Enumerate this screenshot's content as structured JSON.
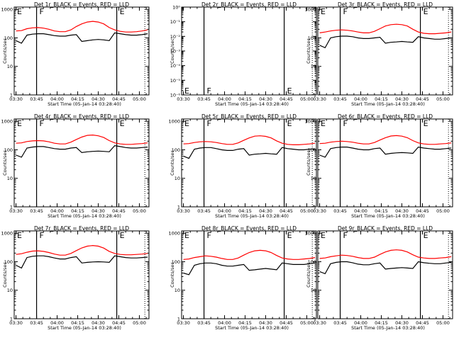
{
  "colors": {
    "events": "#000000",
    "lld": "#ff0000",
    "background": "#ffffff"
  },
  "shared": {
    "xlabel": "Start Time (05-Jan-14 03:28:40)",
    "ylabel": "Counts/sec",
    "x_ticks": [
      "03:30",
      "03:45",
      "04:00",
      "04:15",
      "04:30",
      "04:45",
      "05:00"
    ],
    "y_ticks": [
      "1",
      "10",
      "100",
      "1000"
    ],
    "markers": [
      "E",
      "F",
      "E"
    ]
  },
  "chart_data": [
    {
      "type": "line",
      "title": "Det 1r_BLACK = Events, RED = LLD",
      "xlabel": "Start Time (05-Jan-14 03:28:40)",
      "ylabel": "Counts/sec",
      "y_scale": "log",
      "ylim": [
        1,
        1200
      ],
      "xlim": [
        "03:28:40",
        "05:07:00"
      ],
      "x": [
        "03:30",
        "03:34",
        "03:38",
        "03:42",
        "03:46",
        "03:50",
        "03:54",
        "03:58",
        "04:02",
        "04:06",
        "04:10",
        "04:14",
        "04:18",
        "04:22",
        "04:26",
        "04:30",
        "04:34",
        "04:38",
        "04:42",
        "04:46",
        "04:50",
        "04:54",
        "04:58",
        "05:02",
        "05:06"
      ],
      "series": [
        {
          "name": "Events",
          "color": "#000000",
          "values": [
            80,
            65,
            125,
            135,
            140,
            140,
            130,
            120,
            115,
            115,
            125,
            130,
            75,
            80,
            85,
            88,
            85,
            80,
            150,
            140,
            130,
            125,
            125,
            130,
            140
          ]
        },
        {
          "name": "LLD",
          "color": "#ff0000",
          "values": [
            175,
            180,
            210,
            225,
            230,
            220,
            200,
            175,
            165,
            165,
            190,
            250,
            310,
            360,
            380,
            360,
            310,
            230,
            190,
            170,
            160,
            160,
            165,
            175,
            190
          ]
        }
      ],
      "panel": {
        "title": "Det 1r_BLACK = Events, RED = LLD",
        "markers": [
          "E",
          "F",
          "E"
        ]
      }
    },
    {
      "type": "line",
      "title": "Det 2r_BLACK = Events, RED = LLD",
      "xlabel": "Start Time (05-Jan-14 03:28:40)",
      "ylabel": "Counts/sec",
      "y_scale": "log",
      "ylim": [
        1e-06,
        1.0
      ],
      "y_ticks": [
        "10⁻⁶",
        "10⁻⁵",
        "10⁻⁴",
        "10⁻³",
        "10⁻²",
        "10⁻¹",
        "10⁰"
      ],
      "series": [],
      "panel": {
        "title": "Det 2r_BLACK = Events, RED = LLD",
        "markers": [
          "E",
          "F",
          "E"
        ]
      }
    },
    {
      "type": "line",
      "title": "Det 3r_BLACK = Events, RED = LLD",
      "xlabel": "Start Time (05-Jan-14 03:28:40)",
      "ylabel": "Counts/sec",
      "y_scale": "log",
      "ylim": [
        1,
        1200
      ],
      "x": [
        "03:30",
        "03:34",
        "03:38",
        "03:42",
        "03:46",
        "03:50",
        "03:54",
        "03:58",
        "04:02",
        "04:06",
        "04:10",
        "04:14",
        "04:18",
        "04:22",
        "04:26",
        "04:30",
        "04:34",
        "04:38",
        "04:42",
        "04:46",
        "04:50",
        "04:54",
        "04:58",
        "05:02",
        "05:06"
      ],
      "series": [
        {
          "name": "Events",
          "color": "#000000",
          "values": [
            55,
            45,
            100,
            110,
            115,
            115,
            110,
            100,
            95,
            95,
            100,
            105,
            65,
            70,
            72,
            75,
            72,
            70,
            110,
            100,
            95,
            90,
            90,
            95,
            100
          ]
        },
        {
          "name": "LLD",
          "color": "#ff0000",
          "values": [
            150,
            160,
            175,
            185,
            190,
            185,
            175,
            160,
            150,
            150,
            170,
            210,
            260,
            290,
            300,
            290,
            260,
            200,
            160,
            145,
            140,
            140,
            145,
            150,
            160
          ]
        }
      ],
      "panel": {
        "title": "Det 3r_BLACK = Events, RED = LLD",
        "markers": [
          "E",
          "F",
          "E"
        ]
      }
    },
    {
      "type": "line",
      "title": "Det 4r_BLACK = Events, RED = LLD",
      "xlabel": "Start Time (05-Jan-14 03:28:40)",
      "ylabel": "Counts/sec",
      "y_scale": "log",
      "ylim": [
        1,
        1200
      ],
      "x": [
        "03:30",
        "03:34",
        "03:38",
        "03:42",
        "03:46",
        "03:50",
        "03:54",
        "03:58",
        "04:02",
        "04:06",
        "04:10",
        "04:14",
        "04:18",
        "04:22",
        "04:26",
        "04:30",
        "04:34",
        "04:38",
        "04:42",
        "04:46",
        "04:50",
        "04:54",
        "04:58",
        "05:02",
        "05:06"
      ],
      "series": [
        {
          "name": "Events",
          "color": "#000000",
          "values": [
            65,
            55,
            115,
            125,
            130,
            130,
            120,
            110,
            105,
            105,
            115,
            120,
            80,
            85,
            88,
            90,
            88,
            85,
            140,
            130,
            120,
            115,
            115,
            120,
            125
          ]
        },
        {
          "name": "LLD",
          "color": "#ff0000",
          "values": [
            170,
            175,
            195,
            205,
            210,
            205,
            190,
            170,
            160,
            160,
            185,
            230,
            280,
            320,
            330,
            310,
            270,
            210,
            175,
            160,
            155,
            155,
            160,
            165,
            175
          ]
        }
      ],
      "panel": {
        "title": "Det 4r_BLACK = Events, RED = LLD",
        "markers": [
          "E",
          "F",
          "E"
        ]
      }
    },
    {
      "type": "line",
      "title": "Det 5r_BLACK = Events, RED = LLD",
      "xlabel": "Start Time (05-Jan-14 03:28:40)",
      "ylabel": "Counts/sec",
      "y_scale": "log",
      "ylim": [
        1,
        1200
      ],
      "x": [
        "03:30",
        "03:34",
        "03:38",
        "03:42",
        "03:46",
        "03:50",
        "03:54",
        "03:58",
        "04:02",
        "04:06",
        "04:10",
        "04:14",
        "04:18",
        "04:22",
        "04:26",
        "04:30",
        "04:34",
        "04:38",
        "04:42",
        "04:46",
        "04:50",
        "04:54",
        "04:58",
        "05:02",
        "05:06"
      ],
      "series": [
        {
          "name": "Events",
          "color": "#000000",
          "values": [
            60,
            50,
            105,
            115,
            120,
            120,
            110,
            100,
            95,
            95,
            105,
            110,
            65,
            70,
            72,
            75,
            72,
            70,
            120,
            110,
            105,
            100,
            100,
            105,
            110
          ]
        },
        {
          "name": "LLD",
          "color": "#ff0000",
          "values": [
            160,
            165,
            180,
            190,
            195,
            190,
            180,
            165,
            155,
            155,
            175,
            215,
            260,
            300,
            310,
            295,
            260,
            205,
            170,
            155,
            150,
            150,
            155,
            160,
            170
          ]
        }
      ],
      "panel": {
        "title": "Det 5r_BLACK = Events, RED = LLD",
        "markers": [
          "E",
          "F",
          "E"
        ]
      }
    },
    {
      "type": "line",
      "title": "Det 6r_BLACK = Events, RED = LLD",
      "xlabel": "Start Time (05-Jan-14 03:28:40)",
      "ylabel": "Counts/sec",
      "y_scale": "log",
      "ylim": [
        1,
        1200
      ],
      "x": [
        "03:30",
        "03:34",
        "03:38",
        "03:42",
        "03:46",
        "03:50",
        "03:54",
        "03:58",
        "04:02",
        "04:06",
        "04:10",
        "04:14",
        "04:18",
        "04:22",
        "04:26",
        "04:30",
        "04:34",
        "04:38",
        "04:42",
        "04:46",
        "04:50",
        "04:54",
        "04:58",
        "05:02",
        "05:06"
      ],
      "series": [
        {
          "name": "Events",
          "color": "#000000",
          "values": [
            65,
            55,
            110,
            120,
            125,
            125,
            115,
            105,
            100,
            100,
            110,
            115,
            70,
            75,
            78,
            80,
            78,
            75,
            125,
            115,
            110,
            105,
            105,
            110,
            115
          ]
        },
        {
          "name": "LLD",
          "color": "#ff0000",
          "values": [
            165,
            170,
            185,
            195,
            200,
            195,
            185,
            170,
            160,
            160,
            180,
            220,
            265,
            305,
            315,
            300,
            265,
            210,
            175,
            160,
            155,
            155,
            160,
            165,
            175
          ]
        }
      ],
      "panel": {
        "title": "Det 6r_BLACK = Events, RED = LLD",
        "markers": [
          "E",
          "F",
          "E"
        ]
      }
    },
    {
      "type": "line",
      "title": "Det 7r_BLACK = Events, RED = LLD",
      "xlabel": "Start Time (05-Jan-14 03:28:40)",
      "ylabel": "Counts/sec",
      "y_scale": "log",
      "ylim": [
        1,
        1200
      ],
      "x": [
        "03:30",
        "03:34",
        "03:38",
        "03:42",
        "03:46",
        "03:50",
        "03:54",
        "03:58",
        "04:02",
        "04:06",
        "04:10",
        "04:14",
        "04:18",
        "04:22",
        "04:26",
        "04:30",
        "04:34",
        "04:38",
        "04:42",
        "04:46",
        "04:50",
        "04:54",
        "04:58",
        "05:02",
        "05:06"
      ],
      "series": [
        {
          "name": "Events",
          "color": "#000000",
          "values": [
            75,
            60,
            140,
            155,
            160,
            160,
            150,
            135,
            125,
            125,
            140,
            150,
            90,
            95,
            98,
            100,
            98,
            95,
            160,
            150,
            140,
            135,
            135,
            140,
            145
          ]
        },
        {
          "name": "LLD",
          "color": "#ff0000",
          "values": [
            180,
            190,
            215,
            235,
            240,
            230,
            210,
            185,
            170,
            170,
            195,
            245,
            305,
            350,
            370,
            350,
            300,
            230,
            195,
            180,
            175,
            175,
            180,
            185,
            195
          ]
        }
      ],
      "panel": {
        "title": "Det 7r_BLACK = Events, RED = LLD",
        "markers": [
          "E",
          "F",
          "E"
        ]
      }
    },
    {
      "type": "line",
      "title": "Det 8r_BLACK = Events, RED = LLD",
      "xlabel": "Start Time (05-Jan-14 03:28:40)",
      "ylabel": "Counts/sec",
      "y_scale": "log",
      "ylim": [
        1,
        1200
      ],
      "x": [
        "03:30",
        "03:34",
        "03:38",
        "03:42",
        "03:46",
        "03:50",
        "03:54",
        "03:58",
        "04:02",
        "04:06",
        "04:10",
        "04:14",
        "04:18",
        "04:22",
        "04:26",
        "04:30",
        "04:34",
        "04:38",
        "04:42",
        "04:46",
        "04:50",
        "04:54",
        "04:58",
        "05:02",
        "05:06"
      ],
      "series": [
        {
          "name": "Events",
          "color": "#000000",
          "values": [
            40,
            35,
            75,
            85,
            90,
            90,
            85,
            75,
            70,
            70,
            75,
            80,
            50,
            52,
            55,
            58,
            55,
            52,
            90,
            85,
            80,
            80,
            80,
            85,
            90
          ]
        },
        {
          "name": "LLD",
          "color": "#ff0000",
          "values": [
            120,
            125,
            140,
            150,
            160,
            155,
            145,
            130,
            120,
            120,
            135,
            170,
            210,
            240,
            250,
            240,
            210,
            165,
            135,
            125,
            120,
            120,
            125,
            130,
            140
          ]
        }
      ],
      "panel": {
        "title": "Det 8r_BLACK = Events, RED = LLD",
        "markers": [
          "E",
          "F",
          "E"
        ]
      }
    },
    {
      "type": "line",
      "title": "Det 9r_BLACK = Events, RED = LLD",
      "xlabel": "Start Time (05-Jan-14 03:28:40)",
      "ylabel": "Counts/sec",
      "y_scale": "log",
      "ylim": [
        1,
        1200
      ],
      "x": [
        "03:30",
        "03:34",
        "03:38",
        "03:42",
        "03:46",
        "03:50",
        "03:54",
        "03:58",
        "04:02",
        "04:06",
        "04:10",
        "04:14",
        "04:18",
        "04:22",
        "04:26",
        "04:30",
        "04:34",
        "04:38",
        "04:42",
        "04:46",
        "04:50",
        "04:54",
        "04:58",
        "05:02",
        "05:06"
      ],
      "series": [
        {
          "name": "Events",
          "color": "#000000",
          "values": [
            45,
            38,
            85,
            95,
            100,
            100,
            92,
            82,
            78,
            78,
            85,
            90,
            55,
            58,
            60,
            62,
            60,
            58,
            100,
            92,
            88,
            85,
            85,
            90,
            95
          ]
        },
        {
          "name": "LLD",
          "color": "#ff0000",
          "values": [
            130,
            135,
            150,
            160,
            170,
            165,
            155,
            140,
            130,
            130,
            145,
            180,
            220,
            250,
            260,
            250,
            220,
            175,
            145,
            135,
            130,
            130,
            135,
            140,
            150
          ]
        }
      ],
      "panel": {
        "title": "Det 9r_BLACK = Events, RED = LLD",
        "markers": [
          "E",
          "F",
          "E"
        ]
      }
    }
  ]
}
